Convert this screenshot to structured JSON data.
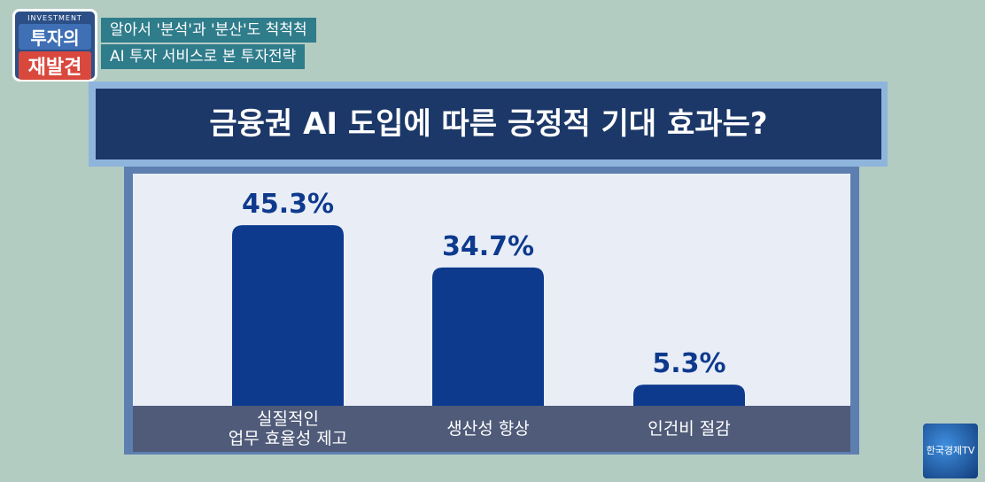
{
  "chart_data": {
    "type": "bar",
    "title": "금융권 AI 도입에 따른 긍정적 기대 효과는?",
    "categories": [
      "실질적인\n업무 효율성 제고",
      "생산성 향상",
      "인건비 절감"
    ],
    "values": [
      45.3,
      34.7,
      5.3
    ],
    "value_labels": [
      "45.3%",
      "34.7%",
      "5.3%"
    ],
    "color": "#0e3a8e"
  },
  "header": {
    "badge_small": "INVESTMENT",
    "badge_line1": "투자의",
    "badge_line2": "재발견",
    "headline1": "알아서 '분석'과 '분산'도 척척척",
    "headline2": "AI 투자 서비스로 본 투자전략"
  },
  "channel": "한국경제TV"
}
